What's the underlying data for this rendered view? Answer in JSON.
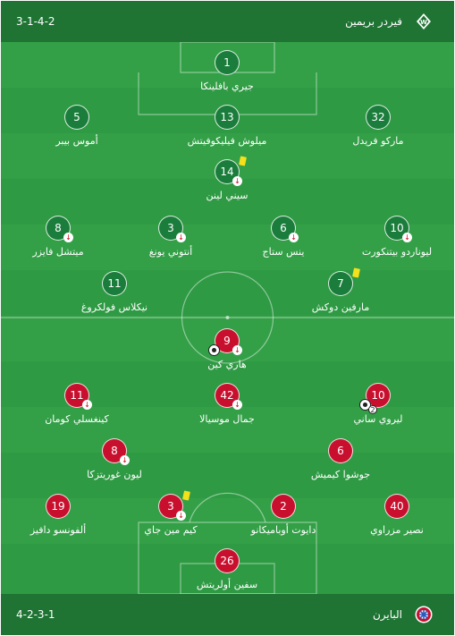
{
  "home": {
    "team_name": "فيردر بريمين",
    "formation": "3-1-4-2",
    "logo_icon": "werder-bremen-logo",
    "color": "#1a7d3b",
    "players": [
      {
        "number": "1",
        "name": "جيري بافلينكا"
      },
      {
        "number": "5",
        "name": "أموس بيبر"
      },
      {
        "number": "13",
        "name": "ميلوش فيليكوفيتش"
      },
      {
        "number": "32",
        "name": "ماركو فريدل"
      },
      {
        "number": "14",
        "name": "سيني لينن"
      },
      {
        "number": "8",
        "name": "ميتشل فايزر"
      },
      {
        "number": "3",
        "name": "أنتوني يونغ"
      },
      {
        "number": "6",
        "name": "ينس ستاج"
      },
      {
        "number": "10",
        "name": "ليوناردو بيتنكورت"
      },
      {
        "number": "11",
        "name": "نيكلاس فولكروغ"
      },
      {
        "number": "7",
        "name": "مارفين دوكش"
      }
    ]
  },
  "away": {
    "team_name": "البايرن",
    "formation": "4-2-3-1",
    "logo_icon": "bayern-munich-logo",
    "color": "#c8102e",
    "players": [
      {
        "number": "9",
        "name": "هاري كين"
      },
      {
        "number": "11",
        "name": "كينغسلي كومان"
      },
      {
        "number": "42",
        "name": "جمال موسيالا"
      },
      {
        "number": "10",
        "name": "ليروي ساني"
      },
      {
        "number": "8",
        "name": "ليون غوريتزكا"
      },
      {
        "number": "6",
        "name": "جوشوا كيميش"
      },
      {
        "number": "19",
        "name": "ألفونسو دافيز"
      },
      {
        "number": "3",
        "name": "كيم مين جاي"
      },
      {
        "number": "2",
        "name": "دايوت أوباميكانو"
      },
      {
        "number": "40",
        "name": "نصير مزراوي"
      },
      {
        "number": "26",
        "name": "سفين أولريتش"
      }
    ],
    "goal_count_leroy": "2"
  },
  "icons": {
    "substitution": "substitution-arrow-icon",
    "yellow_card": "yellow-card-icon",
    "goal": "goal-ball-icon"
  }
}
